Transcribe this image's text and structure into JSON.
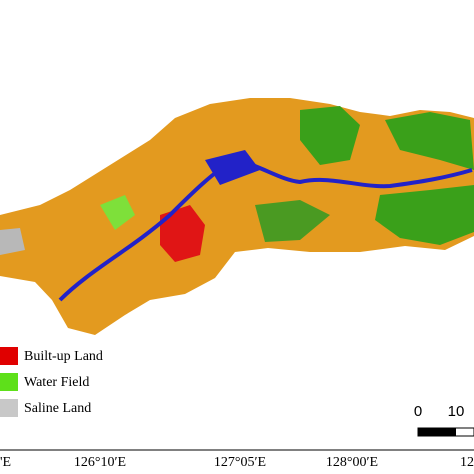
{
  "legend": {
    "items": [
      "Built-up Land",
      "Water Field",
      "Saline Land"
    ]
  },
  "scale_bar": {
    "labels": [
      "0",
      "10"
    ]
  },
  "longitude_labels": [
    "'E",
    "126°10′E",
    "127°05′E",
    "128°00′E",
    "12"
  ]
}
